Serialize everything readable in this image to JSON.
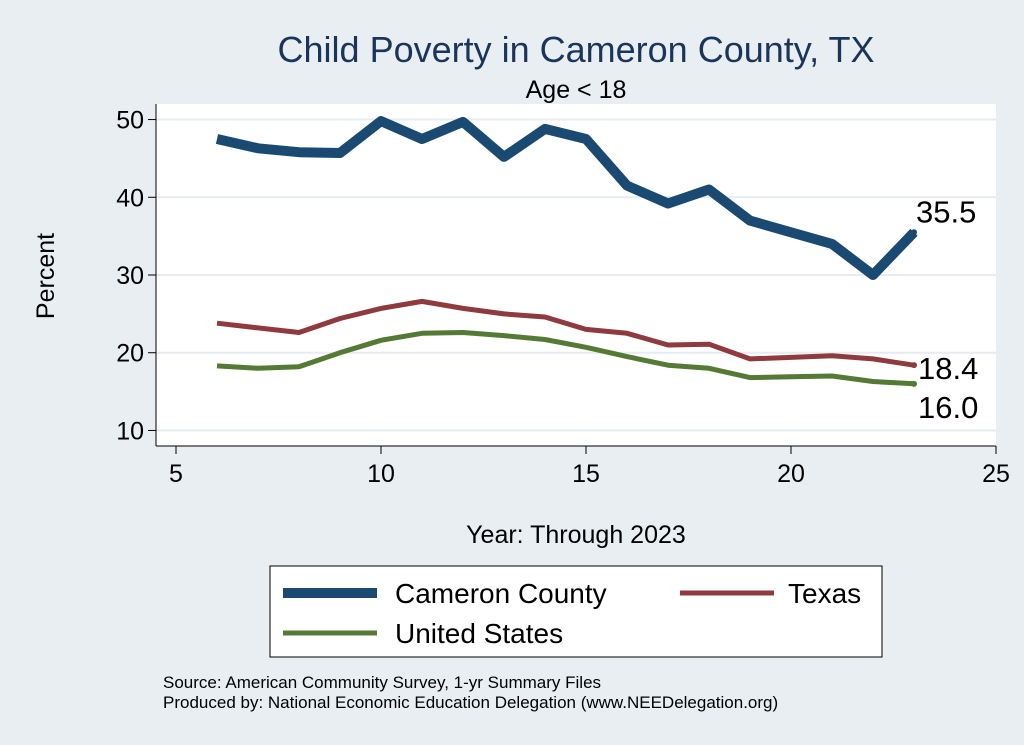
{
  "chart_data": {
    "type": "line",
    "title": "Child Poverty in Cameron County, TX",
    "subtitle": "Age < 18",
    "xlabel": "Year: Through 2023",
    "ylabel": "Percent",
    "xlim": [
      5,
      25
    ],
    "ylim": [
      8,
      52
    ],
    "x_ticks": [
      5,
      10,
      15,
      20,
      25
    ],
    "y_ticks": [
      10,
      20,
      30,
      40,
      50
    ],
    "x_tick_labels": [
      "5",
      "10",
      "15",
      "20",
      "25"
    ],
    "y_tick_labels": [
      "10",
      "20",
      "30",
      "40",
      "50"
    ],
    "grid": true,
    "legend_position": "bottom",
    "series": [
      {
        "name": "Cameron County",
        "color": "#1a4a72",
        "end_label": "35.5",
        "x": [
          6,
          7,
          8,
          9,
          10,
          11,
          12,
          13,
          14,
          15,
          16,
          17,
          18,
          19,
          20,
          21,
          22,
          23
        ],
        "values": [
          47.5,
          46.3,
          45.8,
          45.7,
          49.8,
          47.5,
          49.7,
          45.2,
          48.8,
          47.5,
          41.5,
          39.2,
          41.0,
          37.0,
          35.5,
          34.0,
          30.0,
          35.5
        ]
      },
      {
        "name": "Texas",
        "color": "#8f3a3e",
        "end_label": "18.4",
        "x": [
          6,
          7,
          8,
          9,
          10,
          11,
          12,
          13,
          14,
          15,
          16,
          17,
          18,
          19,
          20,
          21,
          22,
          23
        ],
        "values": [
          23.8,
          23.2,
          22.6,
          24.4,
          25.7,
          26.6,
          25.7,
          25.0,
          24.6,
          23.0,
          22.5,
          21.0,
          21.1,
          19.2,
          19.4,
          19.6,
          19.2,
          18.4
        ]
      },
      {
        "name": "United States",
        "color": "#557a35",
        "end_label": "16.0",
        "x": [
          6,
          7,
          8,
          9,
          10,
          11,
          12,
          13,
          14,
          15,
          16,
          17,
          18,
          19,
          20,
          21,
          22,
          23
        ],
        "values": [
          18.3,
          18.0,
          18.2,
          20.0,
          21.6,
          22.5,
          22.6,
          22.2,
          21.7,
          20.7,
          19.5,
          18.4,
          18.0,
          16.8,
          16.9,
          17.0,
          16.3,
          16.0
        ]
      }
    ],
    "notes": [
      "Source: American Community Survey, 1-yr Summary Files",
      "Produced by: National Economic Education Delegation (www.NEEDelegation.org)"
    ]
  }
}
